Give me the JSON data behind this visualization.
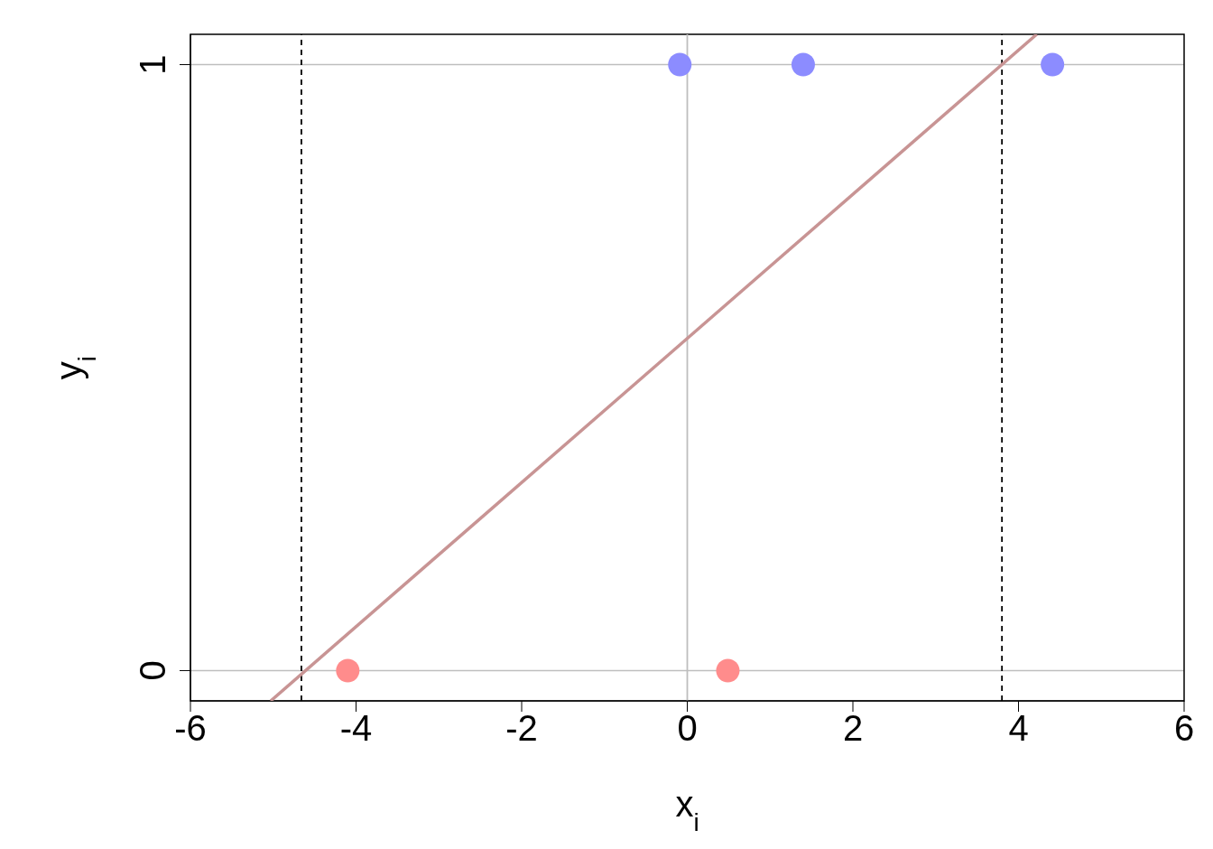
{
  "chart_data": {
    "type": "scatter",
    "xlabel": "x$_{i}$",
    "ylabel": "y$_{i}$",
    "xlim": [
      -6,
      6
    ],
    "xticks": [
      -6,
      -4,
      -2,
      0,
      2,
      4,
      6
    ],
    "ylim": [
      -0.05,
      1.05
    ],
    "yticks": [
      0,
      1
    ],
    "grid": "y",
    "marker": "circle",
    "series": [
      {
        "color": "#8c8cff",
        "x": [
          -0.09,
          1.4,
          4.41
        ],
        "values": [
          1,
          1,
          1
        ]
      },
      {
        "color": "#ff8c8c",
        "x": [
          -4.1,
          0.49
        ],
        "values": [
          0,
          0
        ]
      },
      {
        "type": "line",
        "marker": "none",
        "color": "#c89494",
        "x": [
          -5.03,
          4.22
        ],
        "values": [
          -0.05,
          1.05
        ]
      }
    ],
    "ref_lines": [
      {
        "axis": "x",
        "value": 0,
        "color": "#bebebe",
        "line_style": "solid"
      },
      {
        "axis": "x",
        "value": -4.66,
        "color": "#000000",
        "line_style": "dashed"
      },
      {
        "axis": "x",
        "value": 3.8,
        "color": "#000000",
        "line_style": "dashed"
      }
    ]
  }
}
